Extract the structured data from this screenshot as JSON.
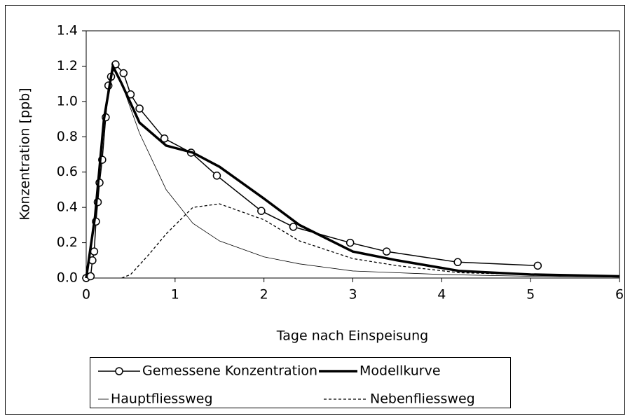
{
  "chart_data": {
    "type": "line",
    "x_label": "Tage nach Einspeisung",
    "y_label": "Konzentration [ppb]",
    "xlim": [
      0,
      6
    ],
    "xticks": [
      0,
      1,
      2,
      3,
      4,
      5,
      6
    ],
    "ylim": [
      0,
      1.4
    ],
    "yticks": [
      {
        "value": 0,
        "label": "0.0"
      },
      0.2,
      0.4,
      0.6,
      0.8,
      {
        "value": 1,
        "label": "1.0"
      },
      1.2,
      1.4
    ],
    "series": [
      {
        "name": "Gemessene Konzentration",
        "color": "#000000",
        "width": 1.5,
        "marker": "circle",
        "x": [
          0,
          0.05,
          0.07,
          0.09,
          0.11,
          0.13,
          0.15,
          0.18,
          0.22,
          0.25,
          0.28,
          0.33,
          0.42,
          0.5,
          0.6,
          0.88,
          1.18,
          1.47,
          1.97,
          2.33,
          2.97,
          3.38,
          4.18,
          5.08
        ],
        "values": [
          0,
          0.01,
          0.1,
          0.15,
          0.32,
          0.43,
          0.54,
          0.67,
          0.91,
          1.09,
          1.14,
          1.21,
          1.16,
          1.04,
          0.96,
          0.79,
          0.71,
          0.58,
          0.38,
          0.29,
          0.2,
          0.15,
          0.09,
          0.07
        ]
      },
      {
        "name": "Modellkurve",
        "color": "#000000",
        "width": 3.5,
        "x": [
          0,
          0.1,
          0.2,
          0.3,
          0.4,
          0.6,
          0.9,
          1.2,
          1.5,
          2,
          2.4,
          3,
          3.5,
          4.2,
          5,
          6
        ],
        "values": [
          0,
          0.35,
          0.9,
          1.2,
          1.1,
          0.88,
          0.75,
          0.71,
          0.63,
          0.45,
          0.3,
          0.15,
          0.1,
          0.04,
          0.02,
          0.01
        ]
      },
      {
        "name": "Hauptfliessweg",
        "color": "#000000",
        "width": 0.8,
        "x": [
          0,
          0.1,
          0.2,
          0.3,
          0.4,
          0.6,
          0.9,
          1.2,
          1.5,
          2,
          2.4,
          3,
          4,
          5,
          6
        ],
        "values": [
          0,
          0.35,
          0.9,
          1.2,
          1.1,
          0.82,
          0.5,
          0.31,
          0.21,
          0.12,
          0.08,
          0.04,
          0.02,
          0.01,
          0.005
        ]
      },
      {
        "name": "Nebenfliessweg",
        "color": "#000000",
        "width": 1.3,
        "dash": "4 3",
        "x": [
          0.4,
          0.5,
          0.7,
          0.9,
          1.2,
          1.5,
          2,
          2.4,
          3,
          3.5,
          4.2,
          5,
          6
        ],
        "values": [
          0,
          0.02,
          0.13,
          0.25,
          0.4,
          0.42,
          0.33,
          0.21,
          0.11,
          0.07,
          0.03,
          0.02,
          0.01
        ]
      }
    ]
  }
}
